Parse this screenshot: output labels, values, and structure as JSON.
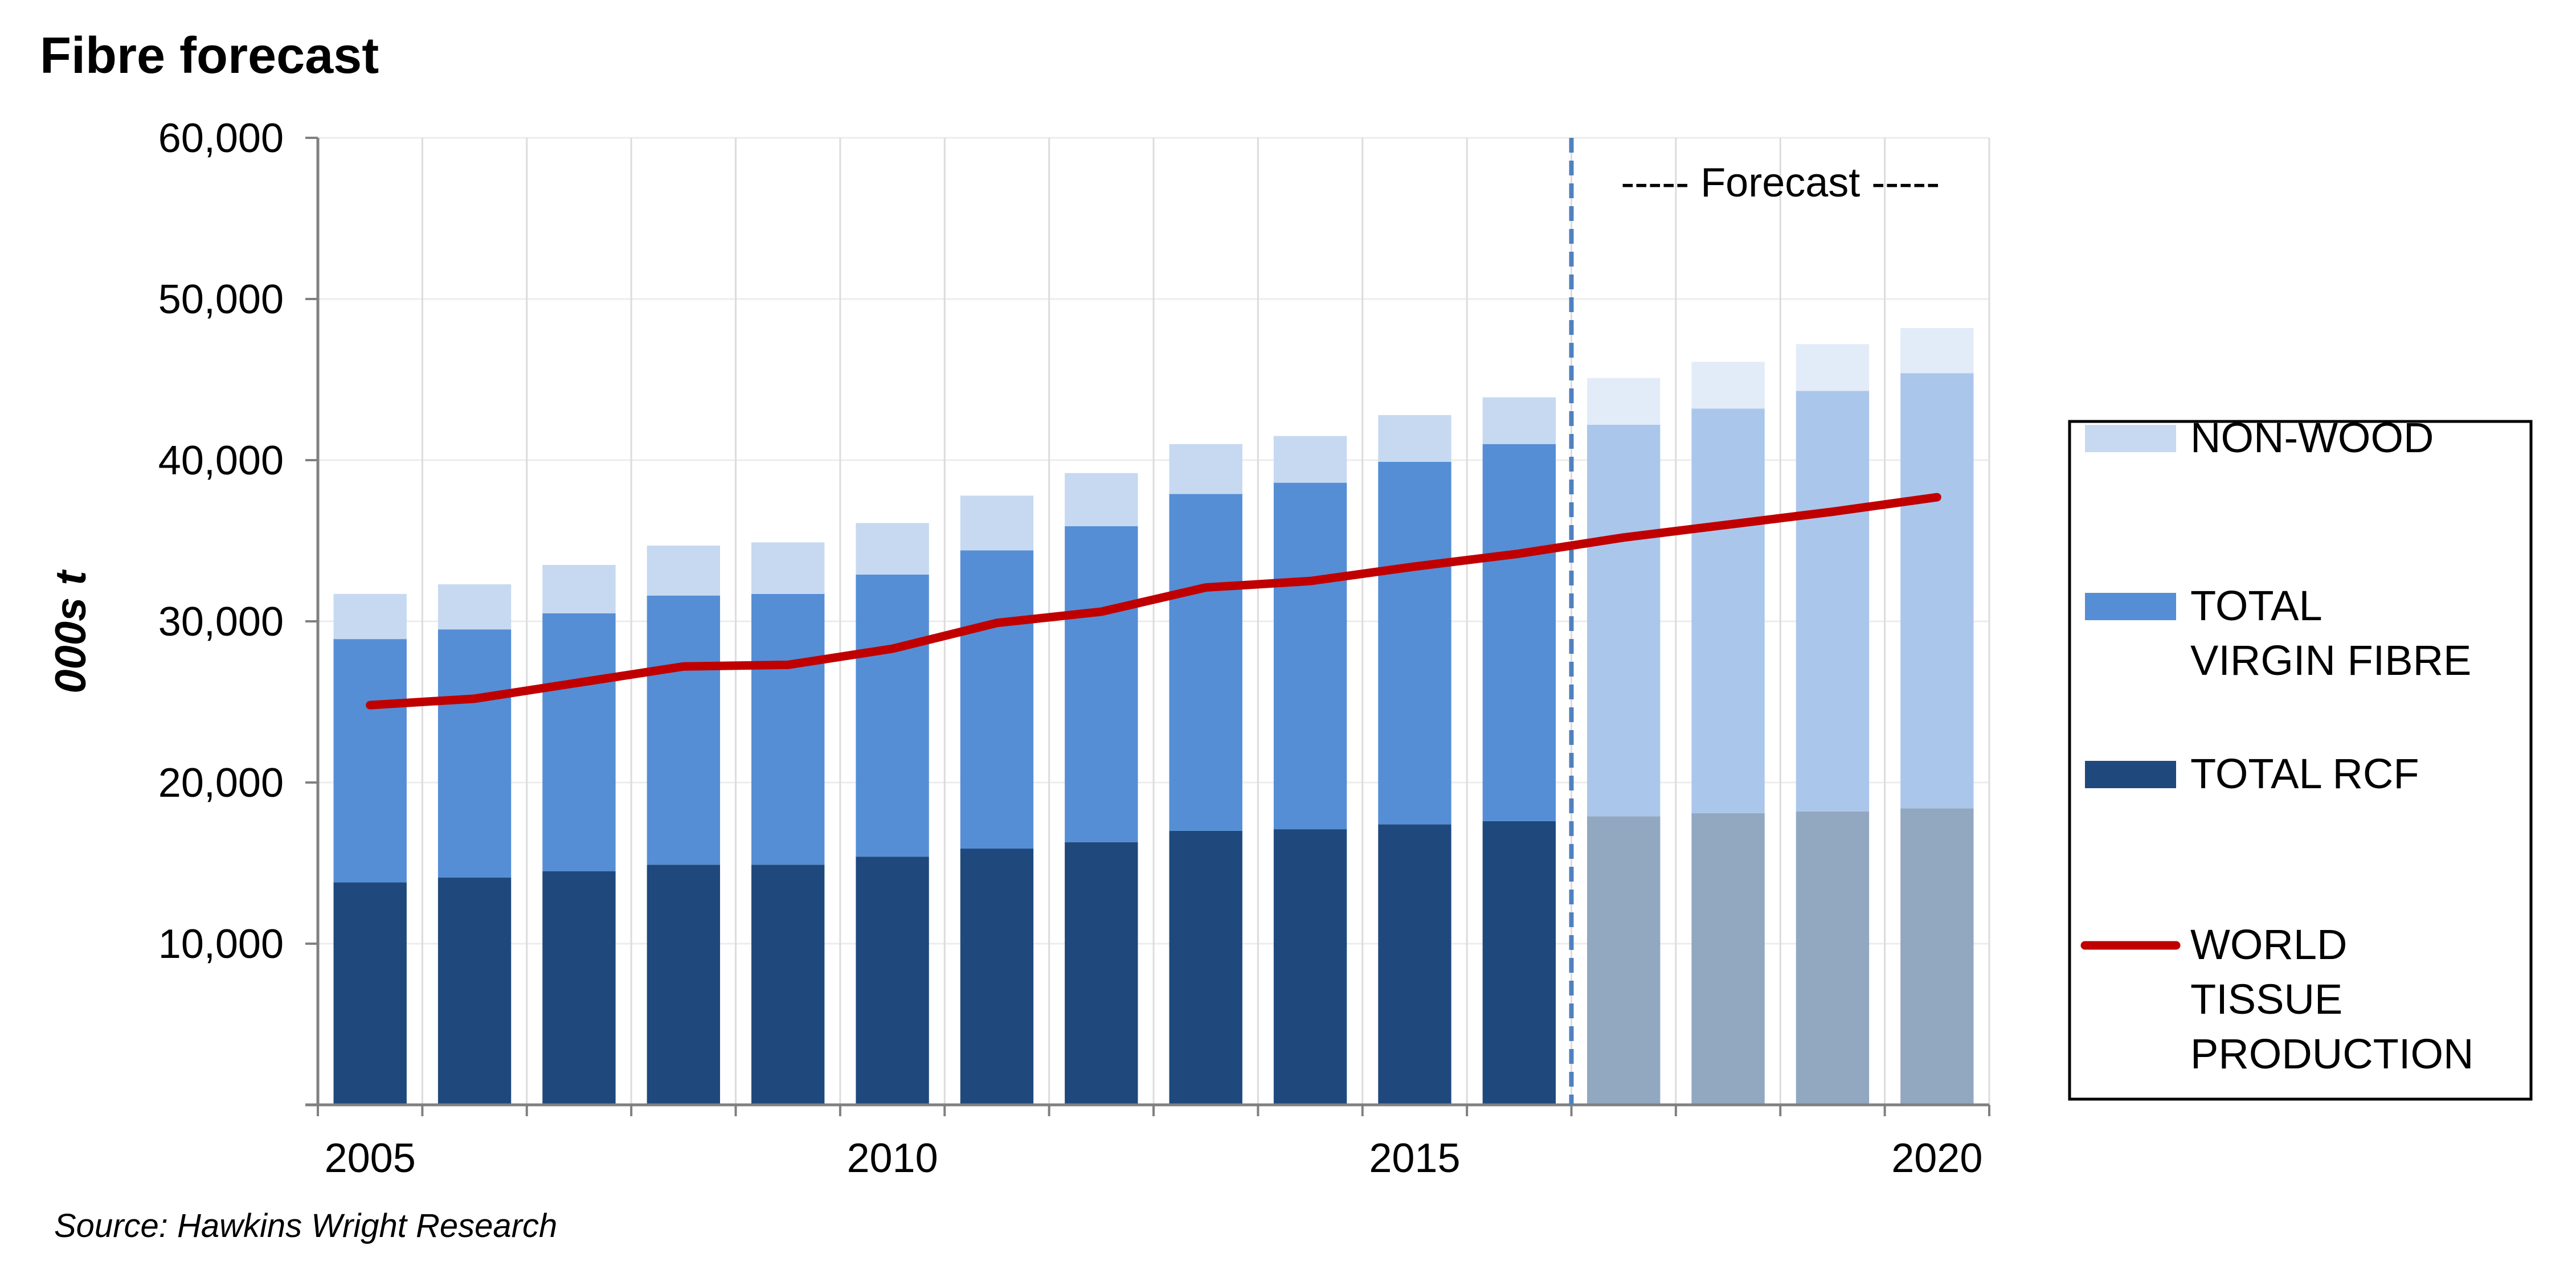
{
  "chart_data": {
    "type": "bar",
    "stacked": true,
    "title": "Fibre forecast",
    "ylabel": "000s t",
    "source": "Source: Hawkins Wright Research",
    "annotation": "----- Forecast -----",
    "ylim": [
      0,
      60000
    ],
    "yticks": [
      "10,000",
      "20,000",
      "30,000",
      "40,000",
      "50,000",
      "60,000"
    ],
    "yticks_values": [
      10000,
      20000,
      30000,
      40000,
      50000,
      60000
    ],
    "categories": [
      2005,
      2006,
      2007,
      2008,
      2009,
      2010,
      2011,
      2012,
      2013,
      2014,
      2015,
      2016,
      2017,
      2018,
      2019,
      2020
    ],
    "xtick_labels": [
      "2005",
      "2010",
      "2015",
      "2020"
    ],
    "xtick_values": [
      2005,
      2010,
      2015,
      2020
    ],
    "forecast_start": 2017,
    "grid": true,
    "legend_position": "right",
    "series": [
      {
        "name": "TOTAL RCF",
        "kind": "bar",
        "color": "#1f497d",
        "forecast_color": "#92a7c0",
        "values": [
          13800,
          14100,
          14500,
          14900,
          14900,
          15400,
          15900,
          16300,
          17000,
          17100,
          17400,
          17600,
          17900,
          18100,
          18200,
          18400
        ]
      },
      {
        "name": "TOTAL VIRGIN FIBRE",
        "kind": "bar",
        "color": "#558ed5",
        "forecast_color": "#abc6eb",
        "values": [
          15100,
          15400,
          16000,
          16700,
          16800,
          17500,
          18500,
          19600,
          20900,
          21500,
          22500,
          23400,
          24300,
          25100,
          26100,
          27000
        ]
      },
      {
        "name": "NON-WOOD",
        "kind": "bar",
        "color": "#c6d9f1",
        "forecast_color": "#e2ecf8",
        "values": [
          2800,
          2800,
          3000,
          3100,
          3200,
          3200,
          3400,
          3300,
          3100,
          2900,
          2900,
          2900,
          2900,
          2900,
          2900,
          2800
        ]
      },
      {
        "name": "WORLD TISSUE PRODUCTION",
        "kind": "line",
        "color": "#c00000",
        "values": [
          24800,
          25200,
          26200,
          27200,
          27300,
          28300,
          29900,
          30600,
          32100,
          32500,
          33400,
          34200,
          35200,
          36000,
          36800,
          37700
        ]
      }
    ],
    "legend": [
      {
        "key": "non_wood",
        "lines": [
          "NON-WOOD"
        ],
        "color": "#c6d9f1",
        "kind": "bar"
      },
      {
        "key": "virgin",
        "lines": [
          "TOTAL",
          "VIRGIN FIBRE"
        ],
        "color": "#558ed5",
        "kind": "bar"
      },
      {
        "key": "rcf",
        "lines": [
          "TOTAL RCF"
        ],
        "color": "#1f497d",
        "kind": "bar"
      },
      {
        "key": "tissue",
        "lines": [
          "WORLD",
          "TISSUE",
          "PRODUCTION"
        ],
        "color": "#c00000",
        "kind": "line"
      }
    ]
  }
}
